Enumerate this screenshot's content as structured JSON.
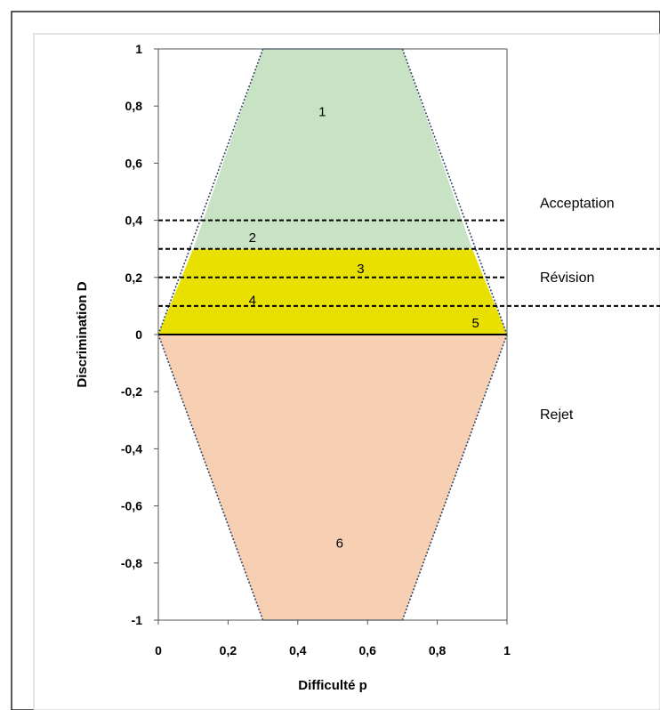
{
  "chart_data": {
    "type": "area",
    "xlabel": "Difficulté p",
    "ylabel": "Discrimination D",
    "xlim": [
      0,
      1
    ],
    "ylim": [
      -1,
      1
    ],
    "x_ticks": [
      "0",
      "0,2",
      "0,4",
      "0,6",
      "0,8",
      "1"
    ],
    "x_tick_values": [
      0,
      0.2,
      0.4,
      0.6,
      0.8,
      1
    ],
    "y_ticks": [
      "1",
      "0,8",
      "0,6",
      "0,4",
      "0,2",
      "0",
      "-0,2",
      "-0,4",
      "-0,6",
      "-0,8",
      "-1"
    ],
    "y_tick_values": [
      1,
      0.8,
      0.6,
      0.4,
      0.2,
      0,
      -0.2,
      -0.4,
      -0.6,
      -0.8,
      -1
    ],
    "grid": false,
    "regions": [
      {
        "name": "acceptation",
        "color": "#c8e3c4",
        "points": [
          [
            0.3,
            1
          ],
          [
            0.7,
            1
          ],
          [
            0.9,
            0.3
          ],
          [
            0.1,
            0.3
          ]
        ]
      },
      {
        "name": "revision",
        "color": "#e8e000",
        "points": [
          [
            0.1,
            0.3
          ],
          [
            0.9,
            0.3
          ],
          [
            1,
            0
          ],
          [
            0,
            0
          ]
        ]
      },
      {
        "name": "rejet",
        "color": "#f7cfb3",
        "points": [
          [
            0,
            0
          ],
          [
            1,
            0
          ],
          [
            0.7,
            -1
          ],
          [
            0.3,
            -1
          ]
        ]
      }
    ],
    "threshold_lines": [
      0.4,
      0.3,
      0.2,
      0.1
    ],
    "zone_labels": [
      {
        "text": "1",
        "x": 0.47,
        "y": 0.78
      },
      {
        "text": "2",
        "x": 0.27,
        "y": 0.34
      },
      {
        "text": "3",
        "x": 0.58,
        "y": 0.23
      },
      {
        "text": "4",
        "x": 0.27,
        "y": 0.12
      },
      {
        "text": "5",
        "x": 0.91,
        "y": 0.04
      },
      {
        "text": "6",
        "x": 0.52,
        "y": -0.73
      }
    ],
    "side_labels": [
      {
        "text": "Acceptation",
        "y": 0.46
      },
      {
        "text": "Révision",
        "y": 0.2
      },
      {
        "text": "Rejet",
        "y": -0.28
      }
    ]
  }
}
